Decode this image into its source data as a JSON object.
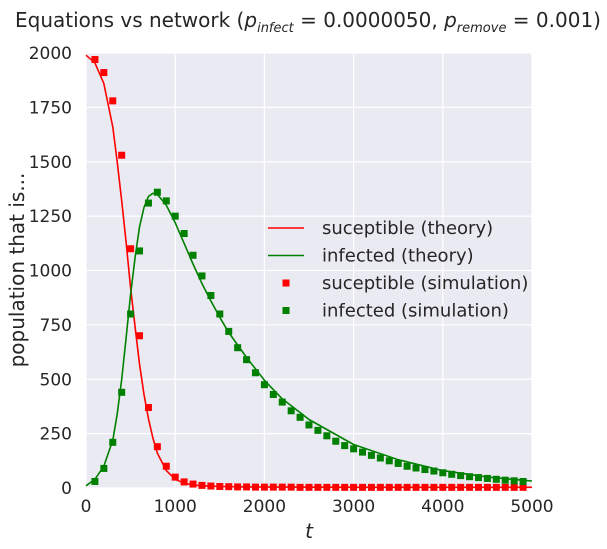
{
  "chart_data": {
    "type": "line",
    "title": {
      "prefix": "Equations vs network (",
      "p1_symbol": "p",
      "p1_subscript": "infect",
      "p1_value": " = 0.0000050, ",
      "p2_symbol": "p",
      "p2_subscript": "remove",
      "p2_value": " = 0.001)"
    },
    "xlabel": "t",
    "ylabel": "population that is...",
    "xlim": [
      0,
      5000
    ],
    "ylim": [
      0,
      2000
    ],
    "xticks": [
      0,
      1000,
      2000,
      3000,
      4000,
      5000
    ],
    "yticks": [
      0,
      250,
      500,
      750,
      1000,
      1250,
      1500,
      1750,
      2000
    ],
    "grid": true,
    "legend_position": "center-right",
    "colors": {
      "susceptible": "#ff0000",
      "infected": "#008000",
      "background": "#eaeaf2",
      "grid": "#ffffff"
    },
    "series": [
      {
        "name": "suceptible (theory)",
        "kind": "line",
        "color": "#ff0000",
        "x": [
          0,
          100,
          200,
          300,
          350,
          400,
          450,
          500,
          550,
          600,
          650,
          700,
          750,
          800,
          900,
          1000,
          1100,
          1200,
          1300,
          1500,
          1800,
          2200,
          3000,
          4000,
          5000
        ],
        "y": [
          1990,
          1955,
          1860,
          1660,
          1500,
          1320,
          1130,
          920,
          740,
          570,
          430,
          320,
          230,
          160,
          80,
          40,
          22,
          14,
          10,
          7,
          5,
          4,
          3,
          3,
          3
        ]
      },
      {
        "name": "infected (theory)",
        "kind": "line",
        "color": "#008000",
        "x": [
          0,
          100,
          200,
          300,
          350,
          400,
          450,
          500,
          550,
          600,
          650,
          700,
          750,
          800,
          900,
          1000,
          1100,
          1200,
          1300,
          1400,
          1500,
          1600,
          1800,
          2000,
          2200,
          2500,
          3000,
          3500,
          4000,
          4500,
          5000
        ],
        "y": [
          10,
          40,
          100,
          220,
          340,
          500,
          690,
          890,
          1060,
          1200,
          1290,
          1340,
          1355,
          1350,
          1300,
          1220,
          1125,
          1030,
          940,
          860,
          785,
          715,
          600,
          495,
          410,
          315,
          200,
          130,
          80,
          50,
          32
        ]
      },
      {
        "name": "suceptible (simulation)",
        "kind": "marker",
        "color": "#ff0000",
        "x": [
          100,
          200,
          300,
          400,
          500,
          600,
          700,
          800,
          900,
          1000,
          1100,
          1200,
          1300,
          1400,
          1500,
          1600,
          1700,
          1800,
          1900,
          2000,
          2100,
          2200,
          2300,
          2400,
          2500,
          2600,
          2700,
          2800,
          2900,
          3000,
          3100,
          3200,
          3300,
          3400,
          3500,
          3600,
          3700,
          3800,
          3900,
          4000,
          4100,
          4200,
          4300,
          4400,
          4500,
          4600,
          4700,
          4800,
          4900
        ],
        "y": [
          1970,
          1910,
          1780,
          1530,
          1100,
          700,
          370,
          190,
          100,
          50,
          28,
          18,
          12,
          9,
          7,
          6,
          5,
          5,
          4,
          4,
          4,
          4,
          4,
          3,
          3,
          3,
          3,
          3,
          3,
          3,
          3,
          3,
          3,
          3,
          3,
          3,
          3,
          3,
          3,
          3,
          3,
          3,
          3,
          3,
          3,
          3,
          3,
          3,
          3
        ]
      },
      {
        "name": "infected (simulation)",
        "kind": "marker",
        "color": "#008000",
        "x": [
          100,
          200,
          300,
          400,
          500,
          600,
          700,
          800,
          900,
          1000,
          1100,
          1200,
          1300,
          1400,
          1500,
          1600,
          1700,
          1800,
          1900,
          2000,
          2100,
          2200,
          2300,
          2400,
          2500,
          2600,
          2700,
          2800,
          2900,
          3000,
          3100,
          3200,
          3300,
          3400,
          3500,
          3600,
          3700,
          3800,
          3900,
          4000,
          4100,
          4200,
          4300,
          4400,
          4500,
          4600,
          4700,
          4800,
          4900
        ],
        "y": [
          30,
          90,
          210,
          440,
          800,
          1090,
          1310,
          1360,
          1320,
          1250,
          1170,
          1070,
          975,
          885,
          800,
          720,
          645,
          590,
          530,
          475,
          430,
          395,
          355,
          325,
          290,
          265,
          240,
          215,
          195,
          180,
          165,
          150,
          138,
          125,
          113,
          100,
          92,
          85,
          78,
          70,
          63,
          57,
          52,
          48,
          44,
          40,
          36,
          33,
          30
        ]
      }
    ]
  }
}
